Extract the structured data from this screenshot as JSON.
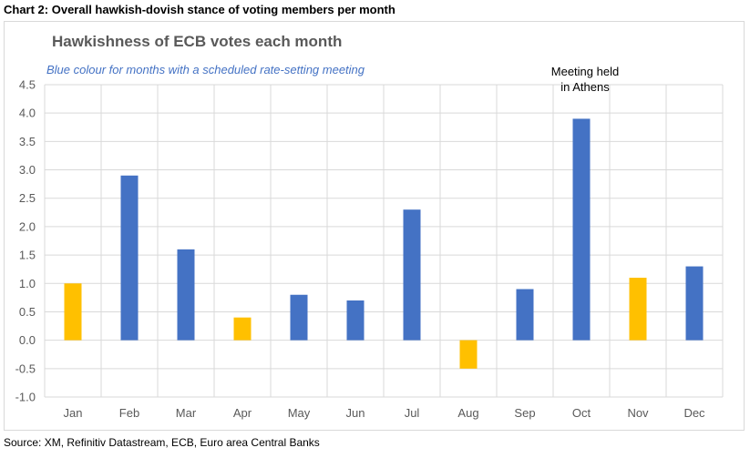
{
  "caption": "Chart 2: Overall hawkish-dovish stance of voting members per month",
  "source": "Source: XM, Refinitiv Datastream, ECB, Euro area Central Banks",
  "colors": {
    "scheduled": "#4472c4",
    "unscheduled": "#ffc000",
    "grid": "#d9d9d9"
  },
  "chart_data": {
    "type": "bar",
    "title": "Hawkishness of ECB votes each month",
    "subtitle": "Blue colour for months with a scheduled rate-setting meeting",
    "categories": [
      "Jan",
      "Feb",
      "Mar",
      "Apr",
      "May",
      "Jun",
      "Jul",
      "Aug",
      "Sep",
      "Oct",
      "Nov",
      "Dec"
    ],
    "values": [
      1.0,
      2.9,
      1.6,
      0.4,
      0.8,
      0.7,
      2.3,
      -0.5,
      0.9,
      3.9,
      1.1,
      1.3
    ],
    "scheduled_meeting": [
      false,
      true,
      true,
      false,
      true,
      true,
      true,
      false,
      true,
      true,
      false,
      true
    ],
    "ylim": [
      -1.0,
      4.5
    ],
    "yticks": [
      "-1.0",
      "-0.5",
      "0.0",
      "0.5",
      "1.0",
      "1.5",
      "2.0",
      "2.5",
      "3.0",
      "3.5",
      "4.0",
      "4.5"
    ],
    "annotation": {
      "category": "Oct",
      "lines": [
        "Meeting held",
        "in Athens"
      ]
    },
    "xlabel": "",
    "ylabel": "",
    "grid": true
  }
}
